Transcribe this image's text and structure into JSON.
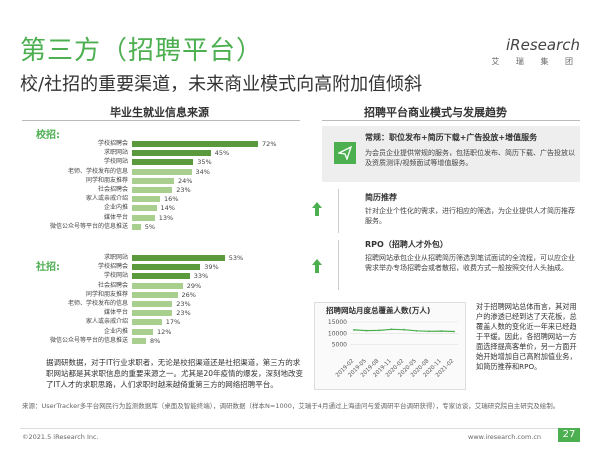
{
  "header": {
    "title": "第三方（招聘平台）",
    "subtitle": "校/社招的重要渠道，未来商业模式向高附加值倾斜",
    "logo_text": "iResearch",
    "logo_cn": "艾 瑞 集 团"
  },
  "left_panel": {
    "title": "毕业生就业信息来源"
  },
  "right_panel": {
    "title": "招聘平台商业模式与发展趋势",
    "models": [
      {
        "icon": "send-icon",
        "heading": "常规：职位发布+简历下载+广告投放+增值服务",
        "body": "为会员企业提供常规的服务，包括职位发布、简历下载、广告投放以及资质测评/视频面试等增值服务。"
      },
      {
        "icon": "up-arrow-icon",
        "heading": "简历推荐",
        "body": "针对企业个性化的需求，进行相应的筛选，为企业提供人才简历推荐服务。"
      },
      {
        "icon": "up-arrow-icon",
        "heading": "RPO（招聘人才外包）",
        "body": "招聘网站承包企业从招聘简历筛选到笔试面试的全流程，可以应企业需求举办专场招聘会或者散招，收费方式一般按照交付人头抽成。"
      }
    ],
    "side_note": "对于招聘网站总体而言，其对用户的渗透已经到达了天花板，总覆盖人数的变化近一年来已经趋于平缓。因此，各招聘网站一方面选择提高客单价，另一方面开始开始增加自己高附加值业务，如简历推荐和RPO。"
  },
  "bottom_note": "据调研数据，对于IT行业求职者，无论是校招渠道还是社招渠道，第三方的求职网站都是其求职信息的重要来源之一。尤其是20年疫情的爆发，深刻地改变了IT人才的求职思路，人们求职时越来越倚重第三方的网络招聘平台。",
  "footer": {
    "source": "来源：UserTracker多平台网民行为监测数据库（桌面及智能终端），调研数据（样本N=1000，艾瑞于4月通过上海迪问与爱调研平台调研获得），专家访谈，艾瑞研究院自主研究及绘制。",
    "copyright": "©2021.5 iResearch Inc.",
    "website": "www.iresearch.com.cn",
    "page": "27"
  },
  "colors": {
    "brand_green": "#4caf50",
    "bar_dark": "#5a9a3c",
    "bar_light": "#a9cf8e"
  },
  "chart_data": [
    {
      "type": "bar",
      "orientation": "horizontal",
      "group": "校招:",
      "categories": [
        "学校招聘会",
        "求职网站",
        "学校网站",
        "老师、学校发布的信息",
        "同学和朋友推荐",
        "社会招聘会",
        "家人或亲戚介绍",
        "企业内推",
        "媒体平台",
        "微信公众号等平台的信息推送"
      ],
      "values": [
        72,
        45,
        35,
        34,
        24,
        23,
        16,
        14,
        13,
        5
      ],
      "value_labels": [
        "72%",
        "45%",
        "35%",
        "34%",
        "24%",
        "23%",
        "16%",
        "14%",
        "13%",
        "5%"
      ]
    },
    {
      "type": "bar",
      "orientation": "horizontal",
      "group": "社招:",
      "categories": [
        "求职网站",
        "学校招聘会",
        "学校网站",
        "社会招聘会",
        "同学和朋友推荐",
        "老师、学校发布的信息",
        "媒体平台",
        "家人或亲戚介绍",
        "企业内推",
        "微信公众号等平台的信息推送"
      ],
      "values": [
        53,
        39,
        33,
        29,
        26,
        23,
        23,
        17,
        12,
        8
      ],
      "value_labels": [
        "53%",
        "39%",
        "33%",
        "29%",
        "26%",
        "23%",
        "23%",
        "17%",
        "12%",
        "8%"
      ]
    },
    {
      "type": "line",
      "title": "招聘网站月度总覆盖人数(万人)",
      "x": [
        "2019-02",
        "2019-05",
        "2019-08",
        "2019-11",
        "2020-02",
        "2020-05",
        "2020-08",
        "2020-11",
        "2021-02"
      ],
      "values": [
        11500,
        11200,
        11300,
        11800,
        11600,
        11100,
        10900,
        11000,
        10800
      ],
      "yticks": [
        5000,
        10000,
        15000
      ],
      "ylim": [
        0,
        15000
      ]
    }
  ]
}
